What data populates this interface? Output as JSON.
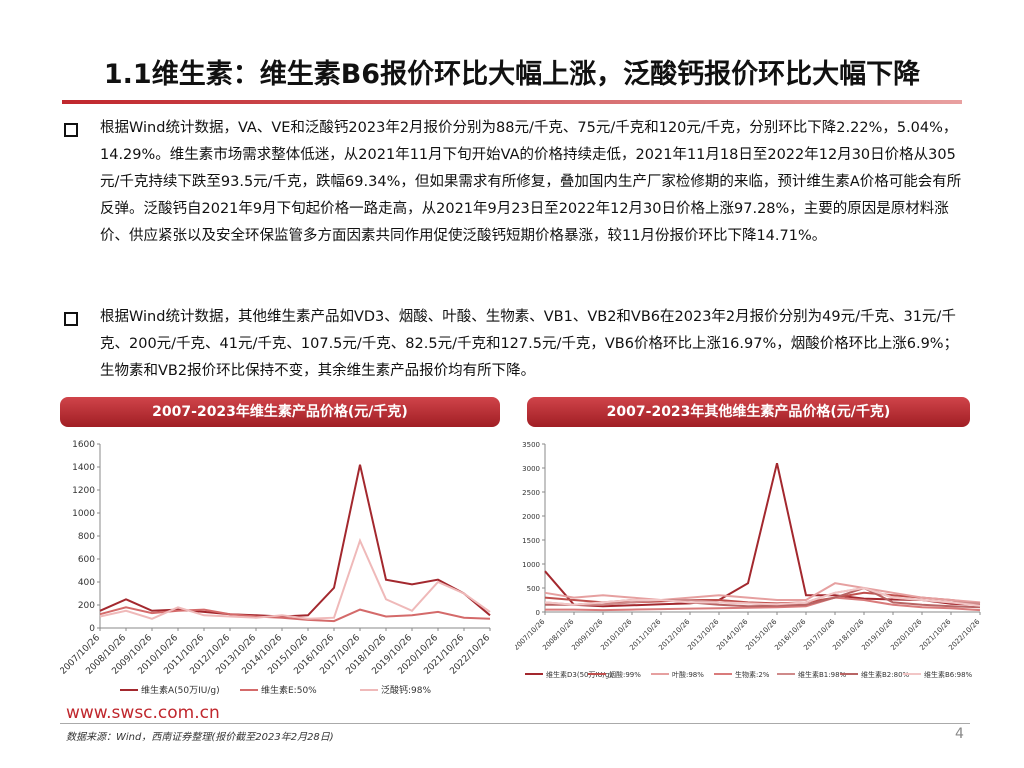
{
  "header": {
    "title": "1.1维生素：维生素B6报价环比大幅上涨，泛酸钙报价环比大幅下降"
  },
  "bullets": [
    "根据Wind统计数据，VA、VE和泛酸钙2023年2月报价分别为88元/千克、75元/千克和120元/千克，分别环比下降2.22%，5.04%，14.29%。维生素市场需求整体低迷，从2021年11月下旬开始VA的价格持续走低，2021年11月18日至2022年12月30日价格从305元/千克持续下跌至93.5元/千克，跌幅69.34%，但如果需求有所修复，叠加国内生产厂家检修期的来临，预计维生素A价格可能会有所反弹。泛酸钙自2021年9月下旬起价格一路走高，从2021年9月23日至2022年12月30日价格上涨97.28%，主要的原因是原材料涨价、供应紧张以及安全环保监管多方面因素共同作用促使泛酸钙短期价格暴涨，较11月份报价环比下降14.71%。",
    "根据Wind统计数据，其他维生素产品如VD3、烟酸、叶酸、生物素、VB1、VB2和VB6在2023年2月报价分别为49元/千克、31元/千克、200元/千克、41元/千克、107.5元/千克、82.5元/千克和127.5元/千克，VB6价格环比上涨16.97%，烟酸价格环比上涨6.9%；生物素和VB2报价环比保持不变，其余维生素产品报价均有所下降。"
  ],
  "chart_data": [
    {
      "type": "line",
      "title": "2007-2023年维生素产品价格(元/千克)",
      "categories": [
        "2007/10/26",
        "2008/10/26",
        "2009/10/26",
        "2010/10/26",
        "2011/10/26",
        "2012/10/26",
        "2013/10/26",
        "2014/10/26",
        "2015/10/26",
        "2016/10/26",
        "2017/10/26",
        "2018/10/26",
        "2019/10/26",
        "2020/10/26",
        "2021/10/26",
        "2022/10/26"
      ],
      "ylim": [
        0,
        1600
      ],
      "yticks": [
        0,
        200,
        400,
        600,
        800,
        1000,
        1200,
        1400,
        1600
      ],
      "series": [
        {
          "name": "维生素A(50万IU/g)",
          "color": "#a3282e",
          "values": [
            150,
            250,
            150,
            160,
            140,
            120,
            110,
            100,
            110,
            350,
            1420,
            420,
            380,
            420,
            300,
            110
          ]
        },
        {
          "name": "维生素E:50%",
          "color": "#d46a6a",
          "values": [
            120,
            180,
            130,
            150,
            160,
            120,
            100,
            90,
            70,
            60,
            160,
            100,
            110,
            140,
            90,
            80
          ]
        },
        {
          "name": "泛酸钙:98%",
          "color": "#efb9b9",
          "values": [
            100,
            150,
            80,
            180,
            110,
            100,
            90,
            110,
            80,
            90,
            760,
            250,
            150,
            400,
            300,
            140
          ]
        }
      ]
    },
    {
      "type": "line",
      "title": "2007-2023年其他维生素产品价格(元/千克)",
      "categories": [
        "2007/10/26",
        "2008/10/26",
        "2009/10/26",
        "2010/10/26",
        "2011/10/26",
        "2012/10/26",
        "2013/10/26",
        "2014/10/26",
        "2015/10/26",
        "2016/10/26",
        "2017/10/26",
        "2018/10/26",
        "2019/10/26",
        "2020/10/26",
        "2021/10/26",
        "2022/10/26"
      ],
      "ylim": [
        0,
        3500
      ],
      "yticks": [
        0,
        500,
        1000,
        1500,
        2000,
        2500,
        3000,
        3500
      ],
      "series": [
        {
          "name": "维生素D3(50万IU/g)",
          "color": "#a3282e",
          "values": [
            850,
            150,
            120,
            140,
            160,
            180,
            250,
            600,
            3100,
            350,
            350,
            280,
            260,
            250,
            170,
            150
          ]
        },
        {
          "name": "烟酸:99%",
          "color": "#c0504d",
          "values": [
            300,
            250,
            200,
            200,
            220,
            250,
            250,
            200,
            180,
            200,
            300,
            400,
            350,
            300,
            250,
            180
          ]
        },
        {
          "name": "叶酸:98%",
          "color": "#e6a0a0",
          "values": [
            400,
            300,
            350,
            300,
            250,
            300,
            350,
            300,
            250,
            250,
            600,
            500,
            400,
            300,
            250,
            200
          ]
        },
        {
          "name": "生物素:2%",
          "color": "#d97b7b",
          "values": [
            50,
            50,
            40,
            50,
            60,
            70,
            80,
            90,
            100,
            120,
            300,
            250,
            150,
            100,
            80,
            40
          ]
        },
        {
          "name": "维生素B1:98%",
          "color": "#cf8a8a",
          "values": [
            200,
            150,
            150,
            200,
            250,
            250,
            200,
            180,
            150,
            200,
            400,
            500,
            300,
            250,
            200,
            180
          ]
        },
        {
          "name": "维生素B2:80%",
          "color": "#b86464",
          "values": [
            150,
            150,
            200,
            250,
            250,
            200,
            150,
            120,
            130,
            150,
            300,
            500,
            200,
            150,
            120,
            100
          ]
        },
        {
          "name": "维生素B6:98%",
          "color": "#f2c6c6",
          "values": [
            200,
            150,
            200,
            250,
            250,
            200,
            200,
            180,
            160,
            200,
            400,
            500,
            300,
            250,
            200,
            130
          ]
        }
      ]
    }
  ],
  "footer": {
    "url": "www.swsc.com.cn",
    "source": "数据来源：Wind，西南证券整理(报价截至2023年2月28日)",
    "page": "4"
  }
}
